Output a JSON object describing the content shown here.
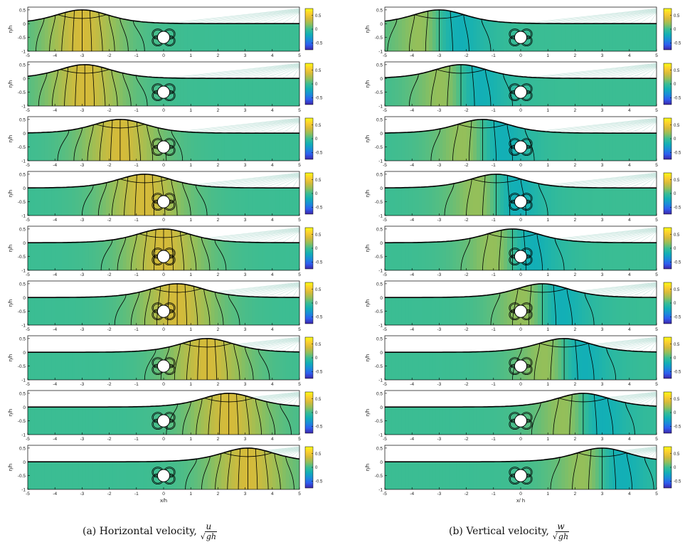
{
  "caption_a": {
    "label": "(a) Horizontal velocity,",
    "num": "u",
    "radical": "√",
    "den": "gh"
  },
  "caption_b": {
    "label": "(b) Vertical velocity,",
    "num": "w",
    "radical": "√",
    "den": "gh"
  },
  "colors": {
    "colormap": [
      "#3e26a8",
      "#2f5ef0",
      "#1a8ed8",
      "#13b0b5",
      "#3bbd93",
      "#92bf5b",
      "#d5bb3a",
      "#fcce2e",
      "#f9fb15"
    ],
    "contour": "#000000",
    "cylinder": "#ffffff",
    "sky": "#c9e6df"
  },
  "chart_data": [
    {
      "type": "contour",
      "panel": "a",
      "field": "horizontal velocity u/sqrt(gh)",
      "xlabel": "x/h",
      "ylabel": "η/h",
      "xlim": [
        -5,
        5
      ],
      "ylim": [
        -1,
        0.6
      ],
      "xticks": [
        "-5",
        "-4",
        "-3",
        "-2",
        "-1",
        "0",
        "1",
        "2",
        "3",
        "4",
        "5"
      ],
      "yticks": [
        "0.5",
        "0",
        "-0.5",
        "-1"
      ],
      "colorbar_ticks": [
        "0.5",
        "0",
        "-0.5"
      ],
      "colorbar_range": [
        -0.75,
        0.75
      ],
      "cylinder": {
        "x": 0,
        "y": -0.5,
        "radius": 0.25
      },
      "wave_amplitude": 0.5,
      "snapshots_wave_crest_x": [
        -3.0,
        -2.9,
        -1.6,
        -0.7,
        0.0,
        0.5,
        1.6,
        2.4,
        3.1
      ]
    },
    {
      "type": "contour",
      "panel": "b",
      "field": "vertical velocity w/sqrt(gh)",
      "xlabel": "x/ h",
      "ylabel": "η/h",
      "xlim": [
        -5,
        5
      ],
      "ylim": [
        -1,
        0.6
      ],
      "xticks": [
        "-5",
        "-4",
        "-3",
        "-2",
        "-1",
        "0",
        "1",
        "2",
        "3",
        "4",
        "5"
      ],
      "yticks": [
        "0.5",
        "0",
        "-0.5",
        "-1"
      ],
      "colorbar_ticks": [
        "0.5",
        "0",
        "-0.5"
      ],
      "colorbar_range": [
        -0.75,
        0.75
      ],
      "cylinder": {
        "x": 0,
        "y": -0.5,
        "radius": 0.25
      },
      "wave_amplitude": 0.5,
      "snapshots_wave_crest_x": [
        -3.0,
        -2.2,
        -1.4,
        -0.9,
        -0.3,
        0.8,
        1.6,
        2.3,
        3.0
      ]
    }
  ]
}
